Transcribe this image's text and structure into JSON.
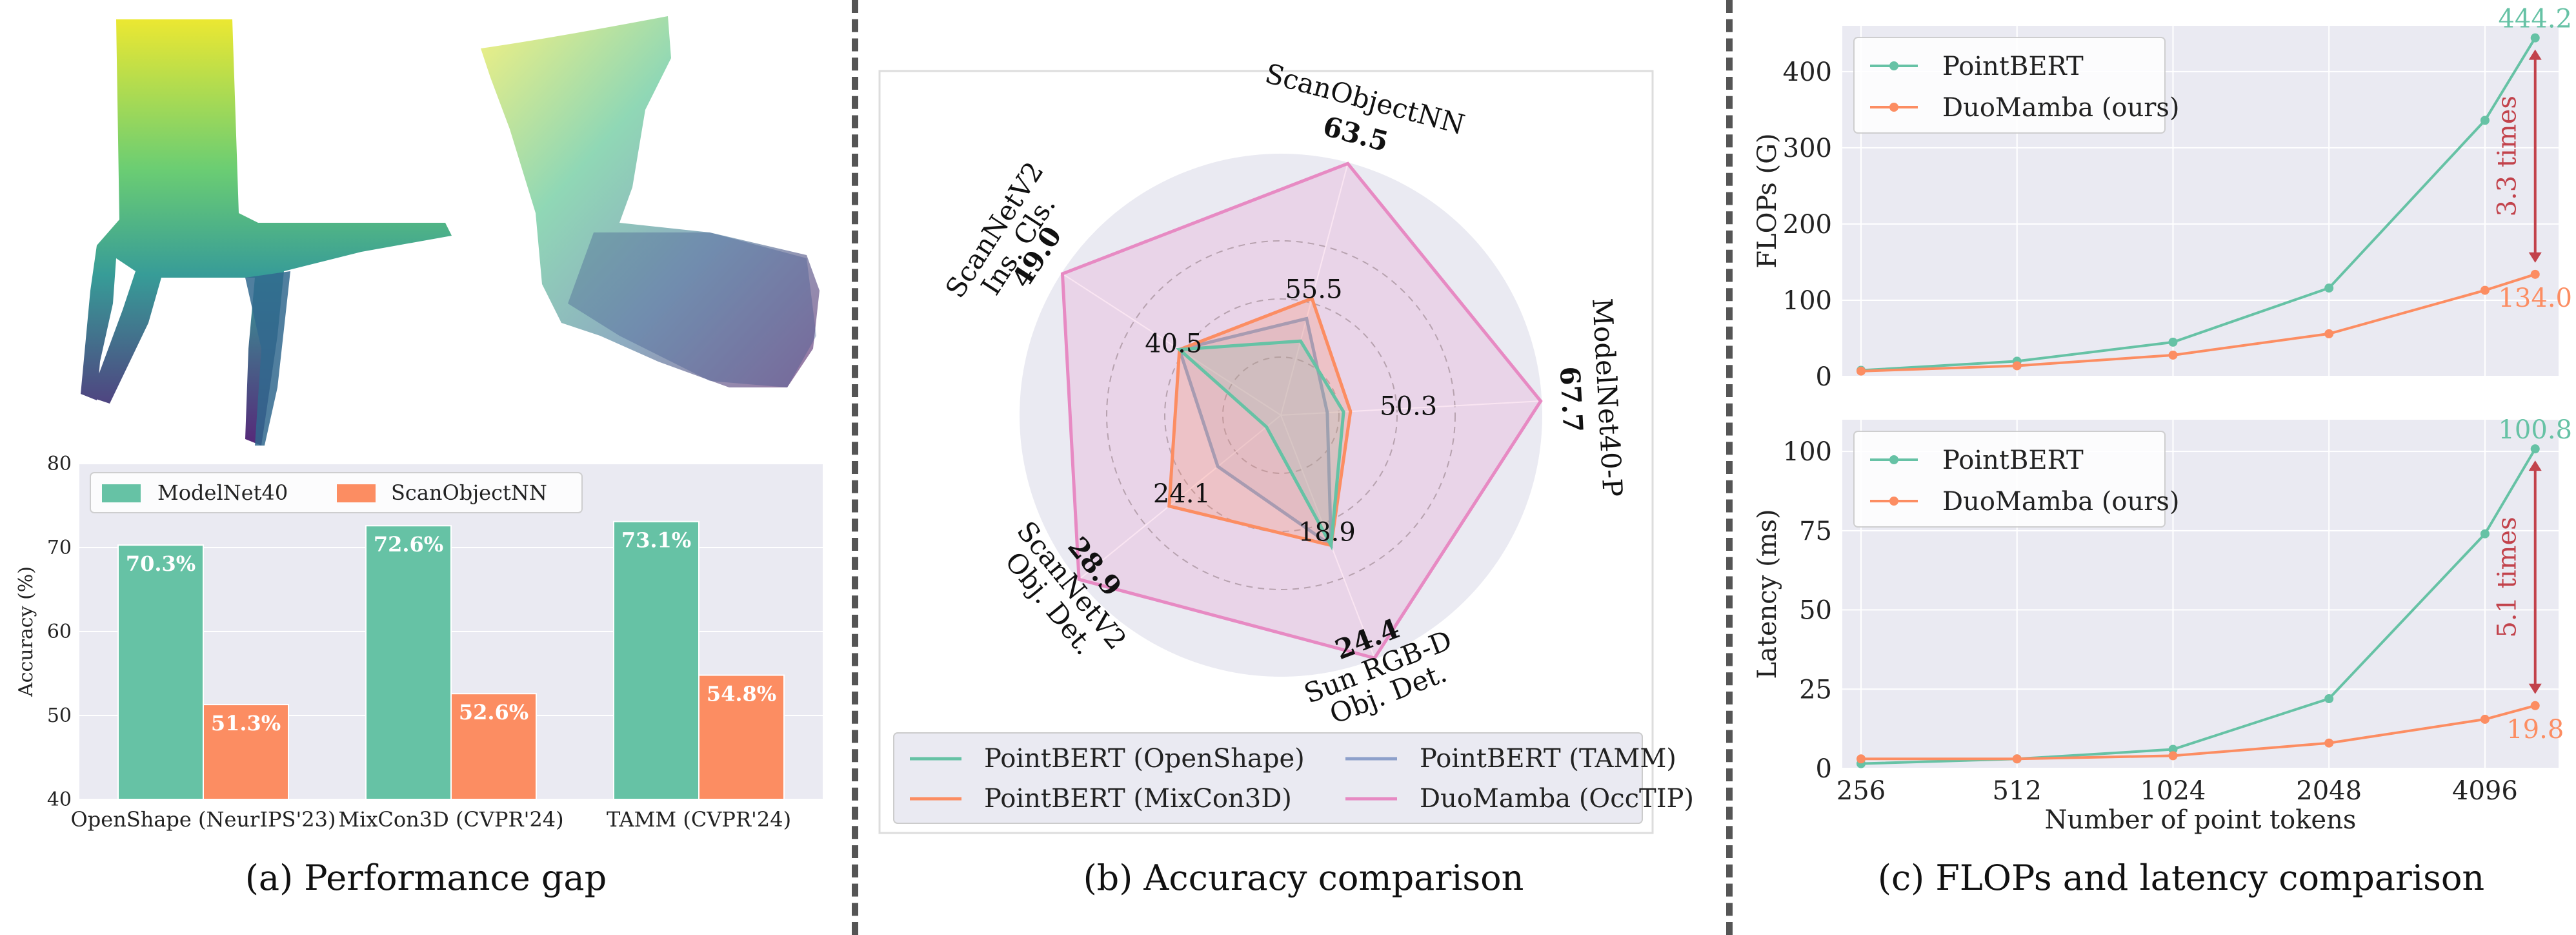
{
  "colors": {
    "green": "#66c2a5",
    "orange": "#fc8d62",
    "blue": "#8da0cb",
    "pink": "#e78ac3",
    "panel_bg": "#eaeaf2",
    "arrow": "#c2424b"
  },
  "captions": {
    "a": "(a) Performance gap",
    "b": "(b) Accuracy comparison",
    "c": "(c) FLOPs and latency comparison"
  },
  "chart_data": [
    {
      "type": "bar",
      "title": "",
      "ylabel": "Accuracy (%)",
      "ylim": [
        40,
        80
      ],
      "yticks": [
        "40",
        "50",
        "60",
        "70",
        "80"
      ],
      "categories": [
        "OpenShape (NeurIPS'23)",
        "MixCon3D (CVPR'24)",
        "TAMM (CVPR'24)"
      ],
      "legend": "top",
      "series": [
        {
          "name": "ModelNet40",
          "values": [
            70.3,
            72.6,
            73.1
          ],
          "labels": [
            "70.3%",
            "72.6%",
            "73.1%"
          ]
        },
        {
          "name": "ScanObjectNN",
          "values": [
            51.3,
            52.6,
            54.8
          ],
          "labels": [
            "51.3%",
            "52.6%",
            "54.8%"
          ]
        }
      ]
    },
    {
      "type": "radar",
      "axes": [
        {
          "name": "ScanObjectNN",
          "max_label": "63.5",
          "mid_label": "55.5"
        },
        {
          "name": "ModelNet40-P",
          "max_label": "67.7",
          "mid_label": "50.3"
        },
        {
          "name": "Sun RGB-D",
          "name2": "Obj. Det.",
          "max_label": "24.4",
          "mid_label": "18.9"
        },
        {
          "name": "ScanNetV2",
          "name2": "Obj. Det.",
          "max_label": "28.9",
          "mid_label": "24.1"
        },
        {
          "name": "ScanNetV2",
          "name2": "Ins. Cls.",
          "max_label": "49.0",
          "mid_label": "40.5"
        }
      ],
      "legend": "bottom",
      "series": [
        {
          "name": "PointBERT (OpenShape)",
          "values": [
            0.33,
            0.27,
            0.6,
            0.08,
            0.52
          ]
        },
        {
          "name": "PointBERT (TAMM)",
          "values": [
            0.43,
            0.2,
            0.6,
            0.35,
            0.52
          ]
        },
        {
          "name": "PointBERT (MixCon3D)",
          "values": [
            0.52,
            0.3,
            0.6,
            0.62,
            0.52
          ]
        },
        {
          "name": "DuoMamba (OccTIP)",
          "values": [
            1.0,
            1.0,
            1.0,
            1.0,
            1.0
          ]
        }
      ]
    },
    {
      "type": "line",
      "ylabel": "FLOPs (G)",
      "ylim": [
        0,
        460
      ],
      "yticks": [
        "0",
        "100",
        "200",
        "300",
        "400"
      ],
      "x": [
        256,
        512,
        1024,
        2048,
        4096,
        5120
      ],
      "xscale": "log",
      "legend": "top-left",
      "series": [
        {
          "name": "PointBERT",
          "values": [
            8,
            20,
            45,
            116,
            336,
            444.2
          ],
          "end_label": "444.2"
        },
        {
          "name": "DuoMamba (ours)",
          "values": [
            7,
            14,
            28,
            56,
            113,
            134.0
          ],
          "end_label": "134.0"
        }
      ],
      "annotation": "3.3 times"
    },
    {
      "type": "line",
      "ylabel": "Latency (ms)",
      "xlabel": "Number of point tokens",
      "ylim": [
        0,
        110
      ],
      "yticks": [
        "0",
        "25",
        "50",
        "75",
        "100"
      ],
      "x": [
        256,
        512,
        1024,
        2048,
        4096,
        5120
      ],
      "xticks": [
        "256",
        "512",
        "1024",
        "2048",
        "4096"
      ],
      "xscale": "log",
      "legend": "top-left",
      "series": [
        {
          "name": "PointBERT",
          "values": [
            1.5,
            3,
            6,
            22,
            74,
            100.8
          ],
          "end_label": "100.8"
        },
        {
          "name": "DuoMamba (ours)",
          "values": [
            3,
            3,
            4,
            8,
            15.5,
            19.8
          ],
          "end_label": "19.8"
        }
      ],
      "annotation": "5.1 times"
    }
  ]
}
